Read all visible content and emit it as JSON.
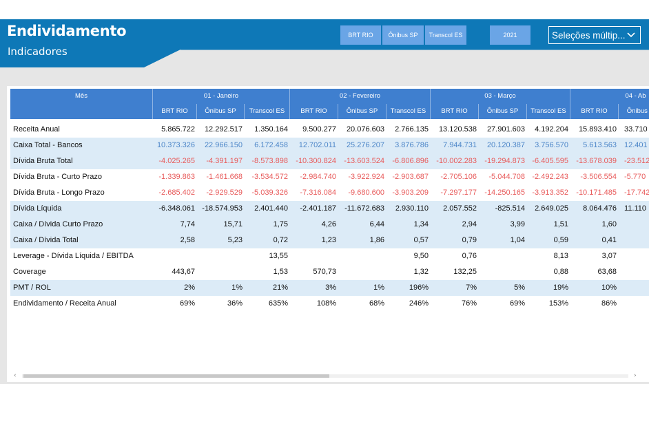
{
  "header": {
    "title": "Endividamento",
    "subtitle": "Indicadores",
    "filters": [
      "BRT RIO",
      "Ônibus SP",
      "Transcol ES"
    ],
    "year": "2021",
    "dropdown": "Seleções múltip...",
    "colors": {
      "header": "#0e78b7",
      "button": "#6aa5e6",
      "table_header": "#3f7fcf"
    }
  },
  "table": {
    "mes_label": "Mês",
    "months": [
      "01 - Janeiro",
      "02 - Fevereiro",
      "03 - Março",
      "04 - Ab"
    ],
    "companies": [
      "BRT RIO",
      "Ônibus SP",
      "Transcol ES"
    ],
    "rows": [
      {
        "label": "Receita Anual",
        "tone": "normal",
        "values": [
          "5.865.722",
          "12.292.517",
          "1.350.164",
          "9.500.277",
          "20.076.603",
          "2.766.135",
          "13.120.538",
          "27.901.603",
          "4.192.204",
          "15.893.410",
          "33.710"
        ]
      },
      {
        "label": "Caixa Total - Bancos",
        "tone": "blue",
        "values": [
          "10.373.326",
          "22.966.150",
          "6.172.458",
          "12.702.011",
          "25.276.207",
          "3.876.786",
          "7.944.731",
          "20.120.387",
          "3.756.570",
          "5.613.563",
          "12.401"
        ]
      },
      {
        "label": "Dívida Bruta Total",
        "tone": "red",
        "values": [
          "-4.025.265",
          "-4.391.197",
          "-8.573.898",
          "-10.300.824",
          "-13.603.524",
          "-6.806.896",
          "-10.002.283",
          "-19.294.873",
          "-6.405.595",
          "-13.678.039",
          "-23.512"
        ]
      },
      {
        "label": "Dívida Bruta - Curto Prazo",
        "tone": "red",
        "values": [
          "-1.339.863",
          "-1.461.668",
          "-3.534.572",
          "-2.984.740",
          "-3.922.924",
          "-2.903.687",
          "-2.705.106",
          "-5.044.708",
          "-2.492.243",
          "-3.506.554",
          "-5.770"
        ]
      },
      {
        "label": "Dívida Bruta - Longo Prazo",
        "tone": "red",
        "values": [
          "-2.685.402",
          "-2.929.529",
          "-5.039.326",
          "-7.316.084",
          "-9.680.600",
          "-3.903.209",
          "-7.297.177",
          "-14.250.165",
          "-3.913.352",
          "-10.171.485",
          "-17.742"
        ]
      },
      {
        "label": "Dívida Líquida",
        "tone": "normal",
        "values": [
          "-6.348.061",
          "-18.574.953",
          "2.401.440",
          "-2.401.187",
          "-11.672.683",
          "2.930.110",
          "2.057.552",
          "-825.514",
          "2.649.025",
          "8.064.476",
          "11.110"
        ]
      },
      {
        "label": "Caixa / Dívida Curto Prazo",
        "tone": "normal",
        "values": [
          "7,74",
          "15,71",
          "1,75",
          "4,26",
          "6,44",
          "1,34",
          "2,94",
          "3,99",
          "1,51",
          "1,60",
          ""
        ]
      },
      {
        "label": "Caixa / Dívida Total",
        "tone": "normal",
        "values": [
          "2,58",
          "5,23",
          "0,72",
          "1,23",
          "1,86",
          "0,57",
          "0,79",
          "1,04",
          "0,59",
          "0,41",
          ""
        ]
      },
      {
        "label": "Leverage - Dívida Líquida / EBITDA",
        "tone": "normal",
        "values": [
          "",
          "",
          "13,55",
          "",
          "",
          "9,50",
          "0,76",
          "",
          "8,13",
          "3,07",
          ""
        ]
      },
      {
        "label": "Coverage",
        "tone": "normal",
        "values": [
          "443,67",
          "",
          "1,53",
          "570,73",
          "",
          "1,32",
          "132,25",
          "",
          "0,88",
          "63,68",
          ""
        ]
      },
      {
        "label": "PMT / ROL",
        "tone": "normal",
        "values": [
          "2%",
          "1%",
          "21%",
          "3%",
          "1%",
          "196%",
          "7%",
          "5%",
          "19%",
          "10%",
          ""
        ]
      },
      {
        "label": "Endividamento / Receita Anual",
        "tone": "normal",
        "values": [
          "69%",
          "36%",
          "635%",
          "108%",
          "68%",
          "246%",
          "76%",
          "69%",
          "153%",
          "86%",
          ""
        ]
      }
    ],
    "tone_colors": {
      "normal": "#111111",
      "blue": "#4d86c8",
      "red": "#e85b5b"
    }
  }
}
